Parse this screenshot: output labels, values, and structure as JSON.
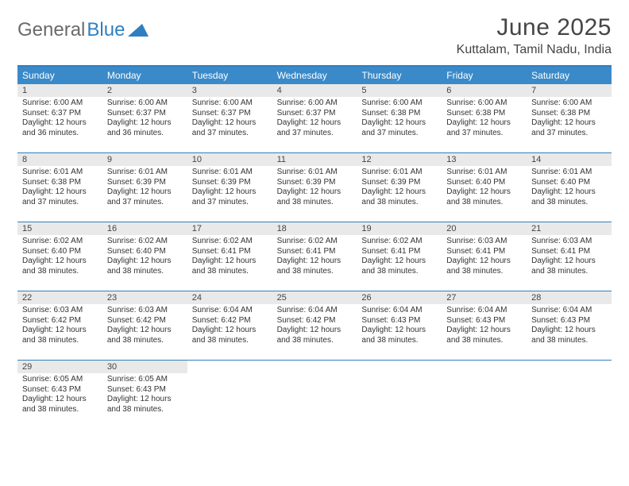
{
  "colors": {
    "header_blue": "#3a8ac9",
    "border_blue": "#2f7fc0",
    "daynum_bg": "#e9e9e9",
    "text": "#333333",
    "title_text": "#454545",
    "logo_gray": "#6a6a6a"
  },
  "logo": {
    "part1": "General",
    "part2": "Blue"
  },
  "title": "June 2025",
  "location": "Kuttalam, Tamil Nadu, India",
  "dow": [
    "Sunday",
    "Monday",
    "Tuesday",
    "Wednesday",
    "Thursday",
    "Friday",
    "Saturday"
  ],
  "days": [
    {
      "n": 1,
      "sr": "6:00 AM",
      "ss": "6:37 PM",
      "dl": "12 hours and 36 minutes."
    },
    {
      "n": 2,
      "sr": "6:00 AM",
      "ss": "6:37 PM",
      "dl": "12 hours and 36 minutes."
    },
    {
      "n": 3,
      "sr": "6:00 AM",
      "ss": "6:37 PM",
      "dl": "12 hours and 37 minutes."
    },
    {
      "n": 4,
      "sr": "6:00 AM",
      "ss": "6:37 PM",
      "dl": "12 hours and 37 minutes."
    },
    {
      "n": 5,
      "sr": "6:00 AM",
      "ss": "6:38 PM",
      "dl": "12 hours and 37 minutes."
    },
    {
      "n": 6,
      "sr": "6:00 AM",
      "ss": "6:38 PM",
      "dl": "12 hours and 37 minutes."
    },
    {
      "n": 7,
      "sr": "6:00 AM",
      "ss": "6:38 PM",
      "dl": "12 hours and 37 minutes."
    },
    {
      "n": 8,
      "sr": "6:01 AM",
      "ss": "6:38 PM",
      "dl": "12 hours and 37 minutes."
    },
    {
      "n": 9,
      "sr": "6:01 AM",
      "ss": "6:39 PM",
      "dl": "12 hours and 37 minutes."
    },
    {
      "n": 10,
      "sr": "6:01 AM",
      "ss": "6:39 PM",
      "dl": "12 hours and 37 minutes."
    },
    {
      "n": 11,
      "sr": "6:01 AM",
      "ss": "6:39 PM",
      "dl": "12 hours and 38 minutes."
    },
    {
      "n": 12,
      "sr": "6:01 AM",
      "ss": "6:39 PM",
      "dl": "12 hours and 38 minutes."
    },
    {
      "n": 13,
      "sr": "6:01 AM",
      "ss": "6:40 PM",
      "dl": "12 hours and 38 minutes."
    },
    {
      "n": 14,
      "sr": "6:01 AM",
      "ss": "6:40 PM",
      "dl": "12 hours and 38 minutes."
    },
    {
      "n": 15,
      "sr": "6:02 AM",
      "ss": "6:40 PM",
      "dl": "12 hours and 38 minutes."
    },
    {
      "n": 16,
      "sr": "6:02 AM",
      "ss": "6:40 PM",
      "dl": "12 hours and 38 minutes."
    },
    {
      "n": 17,
      "sr": "6:02 AM",
      "ss": "6:41 PM",
      "dl": "12 hours and 38 minutes."
    },
    {
      "n": 18,
      "sr": "6:02 AM",
      "ss": "6:41 PM",
      "dl": "12 hours and 38 minutes."
    },
    {
      "n": 19,
      "sr": "6:02 AM",
      "ss": "6:41 PM",
      "dl": "12 hours and 38 minutes."
    },
    {
      "n": 20,
      "sr": "6:03 AM",
      "ss": "6:41 PM",
      "dl": "12 hours and 38 minutes."
    },
    {
      "n": 21,
      "sr": "6:03 AM",
      "ss": "6:41 PM",
      "dl": "12 hours and 38 minutes."
    },
    {
      "n": 22,
      "sr": "6:03 AM",
      "ss": "6:42 PM",
      "dl": "12 hours and 38 minutes."
    },
    {
      "n": 23,
      "sr": "6:03 AM",
      "ss": "6:42 PM",
      "dl": "12 hours and 38 minutes."
    },
    {
      "n": 24,
      "sr": "6:04 AM",
      "ss": "6:42 PM",
      "dl": "12 hours and 38 minutes."
    },
    {
      "n": 25,
      "sr": "6:04 AM",
      "ss": "6:42 PM",
      "dl": "12 hours and 38 minutes."
    },
    {
      "n": 26,
      "sr": "6:04 AM",
      "ss": "6:43 PM",
      "dl": "12 hours and 38 minutes."
    },
    {
      "n": 27,
      "sr": "6:04 AM",
      "ss": "6:43 PM",
      "dl": "12 hours and 38 minutes."
    },
    {
      "n": 28,
      "sr": "6:04 AM",
      "ss": "6:43 PM",
      "dl": "12 hours and 38 minutes."
    },
    {
      "n": 29,
      "sr": "6:05 AM",
      "ss": "6:43 PM",
      "dl": "12 hours and 38 minutes."
    },
    {
      "n": 30,
      "sr": "6:05 AM",
      "ss": "6:43 PM",
      "dl": "12 hours and 38 minutes."
    }
  ],
  "labels": {
    "sunrise": "Sunrise:",
    "sunset": "Sunset:",
    "daylight": "Daylight:"
  },
  "layout": {
    "first_dow_offset": 0,
    "total_cells": 35
  }
}
